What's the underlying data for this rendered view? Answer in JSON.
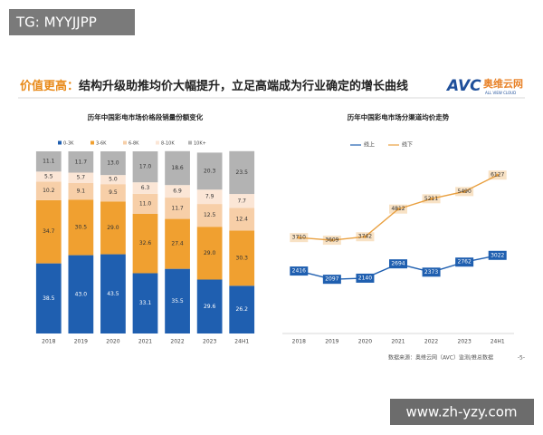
{
  "badge": "TG: MYYJJPP",
  "header": {
    "highlight": "价值更高：",
    "title": "结构升级助推均价大幅提升，立足高端成为行业确定的增长曲线"
  },
  "logo": {
    "mark": "AVC",
    "name": "奥维云网",
    "sub": "ALL VIEW CLOUD"
  },
  "source": "数据来源：奥维云网（AVC）监测/推总数据",
  "page": "-5-",
  "site": "www.zh-yzy.com",
  "chart_data": [
    {
      "type": "bar",
      "stacked": true,
      "title": "历年中国彩电市场价格段销量份额变化",
      "categories": [
        "2018",
        "2019",
        "2020",
        "2021",
        "2022",
        "2023",
        "24H1"
      ],
      "ylim": [
        0,
        100
      ],
      "series": [
        {
          "name": "0-3K",
          "color": "#1f5fb0",
          "values": [
            38.5,
            43.0,
            43.5,
            33.1,
            35.5,
            29.6,
            26.2
          ],
          "value_labels": [
            "38.5",
            "43.0",
            "43.5",
            "33.1",
            "35.5",
            "29.6",
            "26.2"
          ]
        },
        {
          "name": "3-6K",
          "color": "#f0a030",
          "values": [
            34.7,
            30.5,
            29.0,
            32.6,
            27.4,
            29.0,
            30.3
          ],
          "value_labels": [
            "34.7",
            "30.5",
            "29.0",
            "32.6",
            "27.4",
            "29.0",
            "30.3"
          ]
        },
        {
          "name": "6-8K",
          "color": "#f7cfa8",
          "values": [
            10.2,
            9.1,
            9.5,
            11.0,
            11.7,
            12.5,
            12.4
          ],
          "value_labels": [
            "10.2",
            "9.1",
            "9.5",
            "11.0",
            "11.7",
            "12.5",
            "12.4"
          ]
        },
        {
          "name": "8-10K",
          "color": "#fbe6d6",
          "values": [
            5.5,
            5.7,
            5.0,
            6.3,
            6.9,
            7.9,
            7.7
          ],
          "value_labels": [
            "5.5",
            "5.7",
            "5.0",
            "6.3",
            "6.9",
            "7.9",
            "7.7"
          ]
        },
        {
          "name": "10K+",
          "color": "#b3b3b3",
          "values": [
            11.1,
            11.7,
            13.0,
            17.0,
            18.6,
            20.3,
            23.5
          ],
          "value_labels": [
            "11.1",
            "11.7",
            "13.0",
            "17.0",
            "18.6",
            "20.3",
            "23.5"
          ]
        }
      ]
    },
    {
      "type": "line",
      "title": "历年中国彩电市场分渠道均价走势",
      "categories": [
        "2018",
        "2019",
        "2020",
        "2021",
        "2022",
        "2023",
        "24H1"
      ],
      "ylim": [
        0,
        6800
      ],
      "series": [
        {
          "name": "线上",
          "color": "#1f5fb0",
          "values": [
            2416,
            2097,
            2140,
            2694,
            2373,
            2762,
            3022
          ]
        },
        {
          "name": "线下",
          "color": "#e9a040",
          "values": [
            3710,
            3609,
            3742,
            4812,
            5211,
            5490,
            6127
          ]
        }
      ]
    }
  ]
}
